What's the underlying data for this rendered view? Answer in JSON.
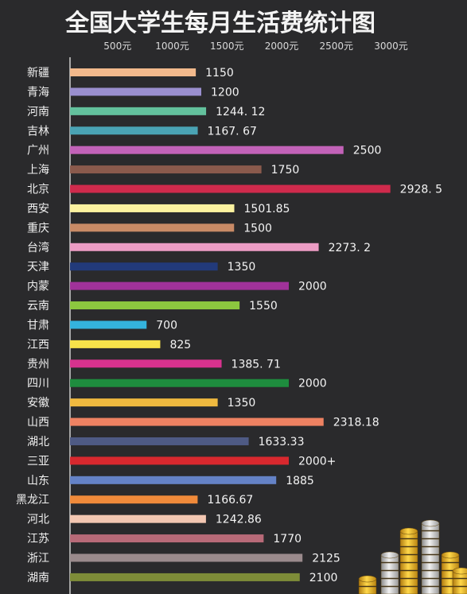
{
  "chart_data": {
    "type": "bar",
    "orientation": "horizontal",
    "title": "全国大学生每月生活费统计图",
    "xlabel": "",
    "ylabel": "",
    "xlim": [
      0,
      3000
    ],
    "ticks": [
      {
        "value": 500,
        "label": "500元"
      },
      {
        "value": 1000,
        "label": "1000元"
      },
      {
        "value": 1500,
        "label": "1500元"
      },
      {
        "value": 2000,
        "label": "2000元"
      },
      {
        "value": 2500,
        "label": "2500元"
      },
      {
        "value": 3000,
        "label": "3000元"
      }
    ],
    "grid": false,
    "legend": "none",
    "bars": [
      {
        "category": "新疆",
        "value": 1150,
        "label": "1150",
        "color": "#f2b98c"
      },
      {
        "category": "青海",
        "value": 1200,
        "label": "1200",
        "color": "#9a8fcf"
      },
      {
        "category": "河南",
        "value": 1244.12,
        "label": "1244. 12",
        "color": "#63c19d"
      },
      {
        "category": "吉林",
        "value": 1167.67,
        "label": "1167. 67",
        "color": "#4aa3b4"
      },
      {
        "category": "广州",
        "value": 2500,
        "label": "2500",
        "color": "#c262b8"
      },
      {
        "category": "上海",
        "value": 1750,
        "label": "1750",
        "color": "#8a5a4c"
      },
      {
        "category": "北京",
        "value": 2928.5,
        "label": "2928. 5",
        "color": "#cf2a4c"
      },
      {
        "category": "西安",
        "value": 1501.85,
        "label": "1501.85",
        "color": "#fbf2a0"
      },
      {
        "category": "重庆",
        "value": 1500,
        "label": "1500",
        "color": "#c88a66"
      },
      {
        "category": "台湾",
        "value": 2273.2,
        "label": "2273. 2",
        "color": "#ec9cc4"
      },
      {
        "category": "天津",
        "value": 1350,
        "label": "1350",
        "color": "#223a7a"
      },
      {
        "category": "内蒙",
        "value": 2000,
        "label": "2000",
        "color": "#a0329a"
      },
      {
        "category": "云南",
        "value": 1550,
        "label": "1550",
        "color": "#8cc63f"
      },
      {
        "category": "甘肃",
        "value": 700,
        "label": "700",
        "color": "#34b3dd"
      },
      {
        "category": "江西",
        "value": 825,
        "label": "825",
        "color": "#f7e24a"
      },
      {
        "category": "贵州",
        "value": 1385.71,
        "label": "1385. 71",
        "color": "#d8328e"
      },
      {
        "category": "四川",
        "value": 2000,
        "label": "2000",
        "color": "#1e8c3e"
      },
      {
        "category": "安徽",
        "value": 1350,
        "label": "1350",
        "color": "#efb93f"
      },
      {
        "category": "山西",
        "value": 2318.18,
        "label": "2318.18",
        "color": "#ee8262"
      },
      {
        "category": "湖北",
        "value": 1633.33,
        "label": "1633.33",
        "color": "#4e5a84"
      },
      {
        "category": "三亚",
        "value": 2000,
        "label": "2000+",
        "color": "#d8282e"
      },
      {
        "category": "山东",
        "value": 1885,
        "label": "1885",
        "color": "#6482c6"
      },
      {
        "category": "黑龙江",
        "value": 1166.67,
        "label": "1166.67",
        "color": "#f08a3a"
      },
      {
        "category": "河北",
        "value": 1242.86,
        "label": "1242.86",
        "color": "#f3c7b2"
      },
      {
        "category": "江苏",
        "value": 1770,
        "label": "1770",
        "color": "#b86a78"
      },
      {
        "category": "浙江",
        "value": 2125,
        "label": "2125",
        "color": "#9a8a8c"
      },
      {
        "category": "湖南",
        "value": 2100,
        "label": "2100",
        "color": "#7e8c38"
      }
    ]
  }
}
